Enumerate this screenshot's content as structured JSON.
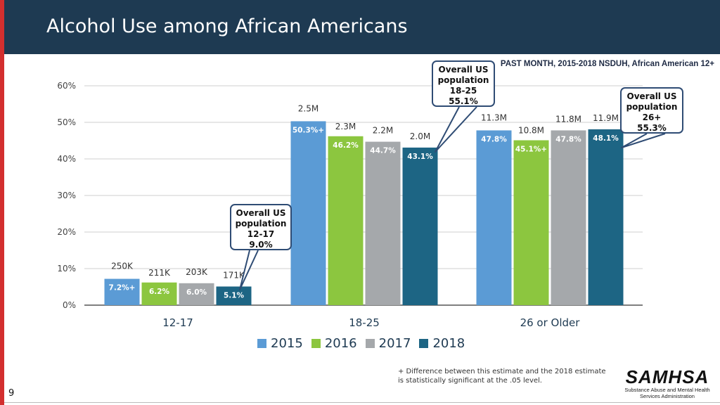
{
  "header": {
    "title": "Alcohol Use among African Americans"
  },
  "subtitle": "PAST MONTH, 2015-2018 NSDUH, African American 12+",
  "chart_data": {
    "type": "bar",
    "categories": [
      "12-17",
      "18-25",
      "26 or Older"
    ],
    "ylim": [
      0,
      60
    ],
    "ytick_labels": [
      "0%",
      "10%",
      "20%",
      "30%",
      "40%",
      "50%",
      "60%"
    ],
    "series": [
      {
        "name": "2015",
        "color": "#5b9bd5",
        "values": [
          7.2,
          50.3,
          47.8
        ],
        "labels": [
          "7.2%+",
          "50.3%+",
          "47.8%"
        ],
        "counts": [
          "250K",
          "2.5M",
          "11.3M"
        ]
      },
      {
        "name": "2016",
        "color": "#8cc63f",
        "values": [
          6.2,
          46.2,
          45.1
        ],
        "labels": [
          "6.2%",
          "46.2%",
          "45.1%+"
        ],
        "counts": [
          "211K",
          "2.3M",
          "10.8M"
        ]
      },
      {
        "name": "2017",
        "color": "#a5a8ab",
        "values": [
          6.0,
          44.7,
          47.8
        ],
        "labels": [
          "6.0%",
          "44.7%",
          "47.8%"
        ],
        "counts": [
          "203K",
          "2.2M",
          "11.8M"
        ]
      },
      {
        "name": "2018",
        "color": "#1d6584",
        "values": [
          5.1,
          43.1,
          48.1
        ],
        "labels": [
          "5.1%",
          "43.1%",
          "48.1%"
        ],
        "counts": [
          "171K",
          "2.0M",
          "11.9M"
        ]
      }
    ]
  },
  "callouts": {
    "c1217": [
      "Overall US",
      "population",
      "12-17",
      "9.0%"
    ],
    "c1825": [
      "Overall US",
      "population",
      "18-25",
      "55.1%"
    ],
    "c26": [
      "Overall US",
      "population",
      "26+",
      "55.3%"
    ]
  },
  "legend": [
    "2015",
    "2016",
    "2017",
    "2018"
  ],
  "footnote": "+ Difference between this estimate and the 2018 estimate is statistically significant at the .05 level.",
  "page_number": "9",
  "logo": {
    "name": "SAMHSA",
    "line1": "Substance Abuse and Mental Health",
    "line2": "Services Administration"
  }
}
